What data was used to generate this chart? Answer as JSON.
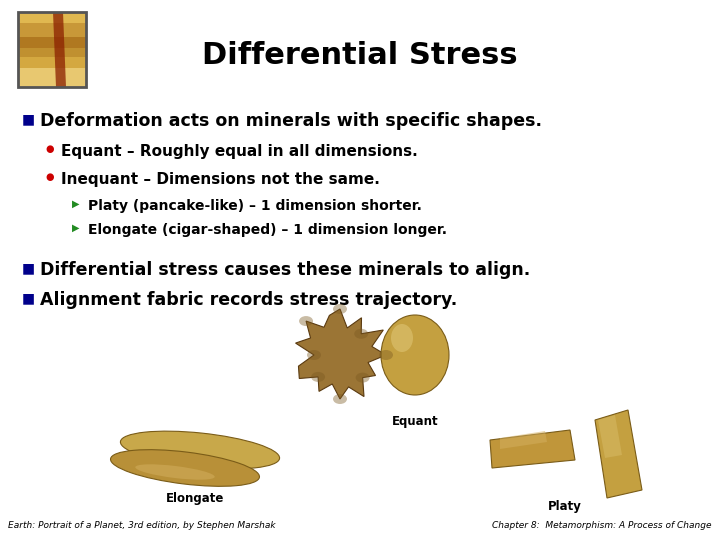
{
  "title": "Differential Stress",
  "title_fontsize": 22,
  "bg_color": "#ffffff",
  "bullet1": "Deformation acts on minerals with specific shapes.",
  "bullet1_fontsize": 12.5,
  "sub1": "Equant – Roughly equal in all dimensions.",
  "sub2": "Inequant – Dimensions not the same.",
  "sub_fontsize": 11,
  "subsub1": "Platy (pancake-like) – 1 dimension shorter.",
  "subsub2": "Elongate (cigar-shaped) – 1 dimension longer.",
  "subsub_fontsize": 10,
  "bullet2": "Differential stress causes these minerals to align.",
  "bullet3": "Alignment fabric records stress trajectory.",
  "bullet23_fontsize": 12.5,
  "blue_bullet_color": "#00008B",
  "red_bullet_color": "#cc0000",
  "green_arrow_color": "#228B22",
  "text_color": "#000000",
  "footer_left": "Earth: Portrait of a Planet, 3rd edition, by Stephen Marshak",
  "footer_right": "Chapter 8:  Metamorphism: A Process of Change",
  "footer_fontsize": 6.5,
  "equant_label": "Equant",
  "elongate_label": "Elongate",
  "platy_label": "Platy",
  "label_fontsize": 8.5,
  "tan_face": "#C4A045",
  "tan_edge": "#7A5C18",
  "tan_dark": "#A07830",
  "lumpy_face": "#9B7535",
  "lumpy_edge": "#5A3A10"
}
